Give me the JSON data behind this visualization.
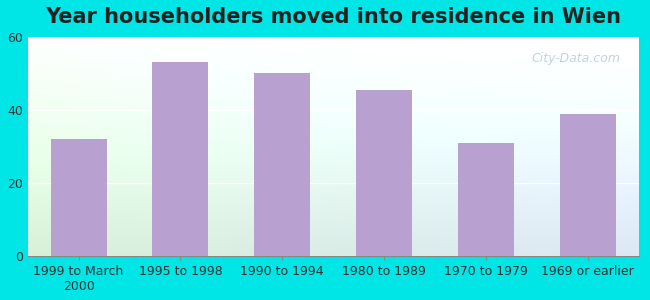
{
  "title": "Year householders moved into residence in Wien",
  "categories": [
    "1999 to March\n2000",
    "1995 to 1998",
    "1990 to 1994",
    "1980 to 1989",
    "1970 to 1979",
    "1969 or earlier"
  ],
  "values": [
    32.0,
    53.0,
    50.0,
    45.5,
    31.0,
    39.0
  ],
  "bar_color": "#b8a0d0",
  "ylim": [
    0,
    60
  ],
  "yticks": [
    0,
    20,
    40,
    60
  ],
  "bg_color_left": "#d8f0d8",
  "bg_color_right": "#dde8f5",
  "outer_bg": "#00e5e5",
  "title_fontsize": 15,
  "tick_fontsize": 9,
  "watermark_text": "City-Data.com"
}
